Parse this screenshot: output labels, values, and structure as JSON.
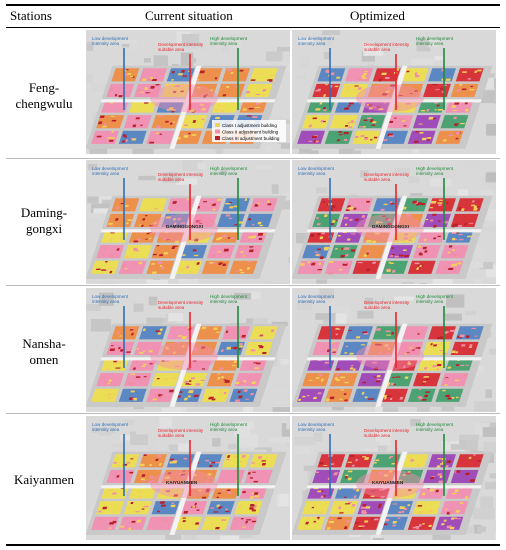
{
  "table": {
    "headers": [
      "Stations",
      "Current situation",
      "Optimized"
    ],
    "rows": [
      {
        "station": "Feng-\nchengwulu",
        "current": {
          "low_label": "Low development intensity area",
          "mid_label": "Development intensity suitable area",
          "high_label": "High development intensity area",
          "legend": [
            "Class I adjustment building",
            "Class II adjustment building",
            "Class III adjustment building"
          ]
        },
        "optimized": {
          "low_label": "Low development intensity area",
          "mid_label": "Development intensity suitable area",
          "high_label": "High development intensity area"
        }
      },
      {
        "station": "Daming-\ngongxi",
        "current": {
          "low_label": "Low development intensity area",
          "mid_label": "Development intensity suitable area",
          "high_label": "High development intensity area",
          "station_label": "DAMINGGONGXI"
        },
        "optimized": {
          "low_label": "Low development intensity area",
          "mid_label": "Development intensity suitable area",
          "high_label": "High development intensity area",
          "station_label": "DAMINGGONGXI"
        }
      },
      {
        "station": "Nansha-\nomen",
        "current": {
          "low_label": "Low development intensity area",
          "mid_label": "Development intensity suitable area",
          "high_label": "High development intensity area"
        },
        "optimized": {
          "low_label": "Low development intensity area",
          "mid_label": "Development intensity suitable area",
          "high_label": "High development intensity area"
        }
      },
      {
        "station": "Kaiyanmen",
        "current": {
          "low_label": "Low development intensity area",
          "mid_label": "Development intensity suitable area",
          "high_label": "High development intensity area",
          "station_label": "KAIYUANMEN"
        },
        "optimized": {
          "low_label": "Low development intensity area",
          "mid_label": "Development intensity suitable area",
          "high_label": "High development intensity area",
          "station_label": "KAIYUANMEN"
        }
      }
    ]
  },
  "colors": {
    "low": "#2e6fb7",
    "mid": "#e8262b",
    "high": "#1f8a3a",
    "blue_block": "#4f7fc2",
    "yellow_block": "#f0e047",
    "orange_block": "#f08a3e",
    "pink_block": "#f48cb0",
    "purple_block": "#9b3fb8",
    "green_block": "#3f9d6a",
    "red_block": "#d9242b",
    "class1": "#f2d15a",
    "class2": "#ef8fa4",
    "class3": "#b8202b"
  }
}
